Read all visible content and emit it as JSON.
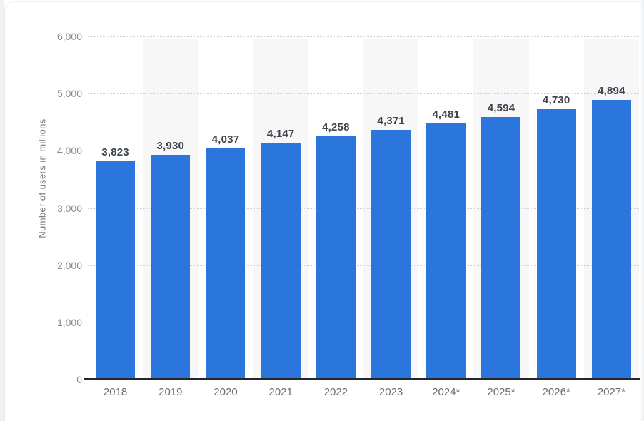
{
  "chart_data": {
    "type": "bar",
    "title": "",
    "ylabel": "Number of users in millions",
    "categories": [
      "2018",
      "2019",
      "2020",
      "2021",
      "2022",
      "2023",
      "2024*",
      "2025*",
      "2026*",
      "2027*"
    ],
    "values": [
      3823,
      3930,
      4037,
      4147,
      4258,
      4371,
      4481,
      4594,
      4730,
      4894
    ],
    "value_labels": [
      "3,823",
      "3,930",
      "4,037",
      "4,147",
      "4,258",
      "4,371",
      "4,481",
      "4,594",
      "4,730",
      "4,894"
    ],
    "ylim": [
      0,
      6000
    ],
    "yticks": [
      0,
      1000,
      2000,
      3000,
      4000,
      5000,
      6000
    ],
    "ytick_labels": [
      "0",
      "1,000",
      "2,000",
      "3,000",
      "4,000",
      "5,000",
      "6,000"
    ],
    "grid": "horizontal-dotted",
    "legend": null,
    "striped_columns": "every second year column shaded",
    "colors": {
      "bar": "#2a76dd",
      "stripe": "#f7f7f8",
      "gridline": "#cfd1d4",
      "axis_line": "#24262a",
      "ytick_text": "#878b90",
      "xtick_text": "#696e73",
      "value_text": "#3e444b",
      "ytitle_text": "#6f7479",
      "page_gutter": "#f1f2f4"
    }
  }
}
